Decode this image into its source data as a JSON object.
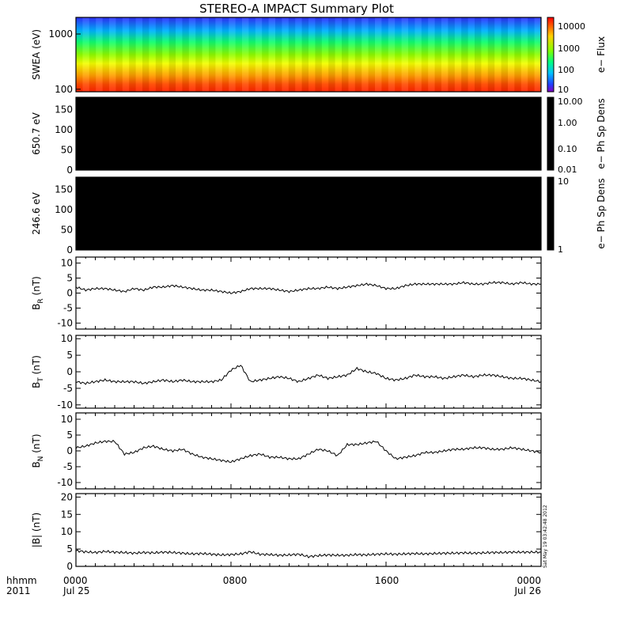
{
  "title": "STEREO-A IMPACT Summary Plot",
  "footer": {
    "hhmm": "hhmm",
    "year": "2011",
    "date_start": "Jul 25",
    "date_end": "Jul 26",
    "x_ticks": [
      "0000",
      "0800",
      "1600",
      "0000"
    ]
  },
  "timestamp": "Sat May 19 03:42:48 2012",
  "chart_data": [
    {
      "type": "heatmap",
      "ylabel": "SWEA (eV)",
      "y_scale": "log",
      "ylim": [
        90,
        2000
      ],
      "y_ticks": [
        "1000",
        "100"
      ],
      "colorbar": {
        "label": "e− Flux",
        "scale": "log",
        "ticks": [
          "10000",
          "1000",
          "100",
          "10"
        ]
      },
      "description_values": {
        "flux_low_energy_high": 20000,
        "flux_high_energy_low": 10
      }
    },
    {
      "type": "heatmap",
      "ylabel": "650.7 eV",
      "ylim": [
        0,
        180
      ],
      "y_ticks": [
        "0",
        "50",
        "100",
        "150"
      ],
      "colorbar": {
        "label": "e− Ph Sp Dens",
        "scale": "log",
        "ticks": [
          "10.00",
          "1.00",
          "0.10",
          "0.01"
        ]
      }
    },
    {
      "type": "heatmap",
      "ylabel": "246.6 eV",
      "ylim": [
        0,
        180
      ],
      "y_ticks": [
        "0",
        "50",
        "100",
        "150"
      ],
      "colorbar": {
        "label": "e− Ph Sp Dens",
        "scale": "log",
        "ticks": [
          "10",
          "1"
        ]
      }
    },
    {
      "type": "line",
      "ylabel": "B",
      "ylabel_sub": "R",
      "ylabel_unit": "(nT)",
      "ylim": [
        -12,
        12
      ],
      "y_ticks": [
        "10",
        "5",
        "0",
        "-5",
        "-10"
      ],
      "x_hours": [
        0,
        0.5,
        1,
        1.5,
        2,
        2.5,
        3,
        3.5,
        4,
        4.5,
        5,
        5.5,
        6,
        6.5,
        7,
        7.5,
        8,
        8.5,
        9,
        9.5,
        10,
        10.5,
        11,
        11.5,
        12,
        12.5,
        13,
        13.5,
        14,
        14.5,
        15,
        15.5,
        16,
        16.5,
        17,
        17.5,
        18,
        18.5,
        19,
        19.5,
        20,
        20.5,
        21,
        21.5,
        22,
        22.5,
        23,
        23.5,
        24
      ],
      "values": [
        2,
        1,
        1.5,
        1.5,
        1,
        0.5,
        1.5,
        1,
        2,
        2,
        2.5,
        2,
        1.5,
        1,
        1,
        0.5,
        0,
        0.5,
        1.5,
        1.5,
        1.5,
        1,
        0.5,
        1,
        1.5,
        1.5,
        2,
        1.5,
        2,
        2.5,
        3,
        2.5,
        1.5,
        1.5,
        2.5,
        3,
        3,
        3,
        3,
        3,
        3.5,
        3,
        3,
        3.5,
        3.5,
        3,
        3.5,
        3,
        3
      ]
    },
    {
      "type": "line",
      "ylabel": "B",
      "ylabel_sub": "T",
      "ylabel_unit": "(nT)",
      "ylim": [
        -11,
        11
      ],
      "y_ticks": [
        "10",
        "5",
        "0",
        "-5",
        "-10"
      ],
      "x_hours": [
        0,
        0.5,
        1,
        1.5,
        2,
        2.5,
        3,
        3.5,
        4,
        4.5,
        5,
        5.5,
        6,
        6.5,
        7,
        7.5,
        8,
        8.5,
        9,
        9.5,
        10,
        10.5,
        11,
        11.5,
        12,
        12.5,
        13,
        13.5,
        14,
        14.5,
        15,
        15.5,
        16,
        16.5,
        17,
        17.5,
        18,
        18.5,
        19,
        19.5,
        20,
        20.5,
        21,
        21.5,
        22,
        22.5,
        23,
        23.5,
        24
      ],
      "values": [
        -3,
        -3.5,
        -3,
        -2.5,
        -3,
        -3,
        -3,
        -3.5,
        -3,
        -2.5,
        -3,
        -2.5,
        -3,
        -3,
        -3,
        -2.5,
        0.5,
        2,
        -3,
        -2.5,
        -2,
        -1.5,
        -2,
        -3,
        -2,
        -1,
        -2,
        -1.5,
        -1,
        1,
        0,
        -0.5,
        -2,
        -2.5,
        -2,
        -1,
        -1.5,
        -1.5,
        -2,
        -1.5,
        -1,
        -1.5,
        -1,
        -1,
        -1.5,
        -2,
        -2,
        -2.5,
        -3
      ]
    },
    {
      "type": "line",
      "ylabel": "B",
      "ylabel_sub": "N",
      "ylabel_unit": "(nT)",
      "ylim": [
        -12,
        12
      ],
      "y_ticks": [
        "10",
        "5",
        "0",
        "-5",
        "-10"
      ],
      "x_hours": [
        0,
        0.5,
        1,
        1.5,
        2,
        2.5,
        3,
        3.5,
        4,
        4.5,
        5,
        5.5,
        6,
        6.5,
        7,
        7.5,
        8,
        8.5,
        9,
        9.5,
        10,
        10.5,
        11,
        11.5,
        12,
        12.5,
        13,
        13.5,
        14,
        14.5,
        15,
        15.5,
        16,
        16.5,
        17,
        17.5,
        18,
        18.5,
        19,
        19.5,
        20,
        20.5,
        21,
        21.5,
        22,
        22.5,
        23,
        23.5,
        24
      ],
      "values": [
        1,
        1.5,
        2.5,
        3,
        3,
        -1,
        -0.5,
        1,
        1.5,
        0.5,
        0,
        0.5,
        -1,
        -2,
        -2.5,
        -3,
        -3.5,
        -2.5,
        -1.5,
        -1,
        -2,
        -2,
        -2.5,
        -2.5,
        -1,
        0.5,
        0,
        -1.5,
        2,
        2,
        2.5,
        3,
        0,
        -2.5,
        -2,
        -1.5,
        -0.5,
        -0.5,
        0,
        0.5,
        0.5,
        1,
        1,
        0.5,
        0.5,
        1,
        0.5,
        0,
        -0.5
      ]
    },
    {
      "type": "line",
      "ylabel": "|B| (nT)",
      "ylim": [
        0,
        21
      ],
      "y_ticks": [
        "20",
        "15",
        "10",
        "5",
        "0"
      ],
      "x_hours": [
        0,
        0.5,
        1,
        1.5,
        2,
        2.5,
        3,
        3.5,
        4,
        4.5,
        5,
        5.5,
        6,
        6.5,
        7,
        7.5,
        8,
        8.5,
        9,
        9.5,
        10,
        10.5,
        11,
        11.5,
        12,
        12.5,
        13,
        13.5,
        14,
        14.5,
        15,
        15.5,
        16,
        16.5,
        17,
        17.5,
        18,
        18.5,
        19,
        19.5,
        20,
        20.5,
        21,
        21.5,
        22,
        22.5,
        23,
        23.5,
        24
      ],
      "values": [
        4.5,
        4.2,
        4,
        4.3,
        4.1,
        4,
        3.8,
        4,
        3.9,
        4.1,
        4,
        3.8,
        3.6,
        3.7,
        3.5,
        3.3,
        3.4,
        3.6,
        4.2,
        3.5,
        3.4,
        3.2,
        3.3,
        3.5,
        2.8,
        3.1,
        3.3,
        3.2,
        3.2,
        3.4,
        3.3,
        3.5,
        3.6,
        3.5,
        3.6,
        3.7,
        3.6,
        3.7,
        3.8,
        3.8,
        3.9,
        3.8,
        3.9,
        4,
        4,
        4.1,
        4.1,
        4.1,
        4.1
      ]
    }
  ]
}
